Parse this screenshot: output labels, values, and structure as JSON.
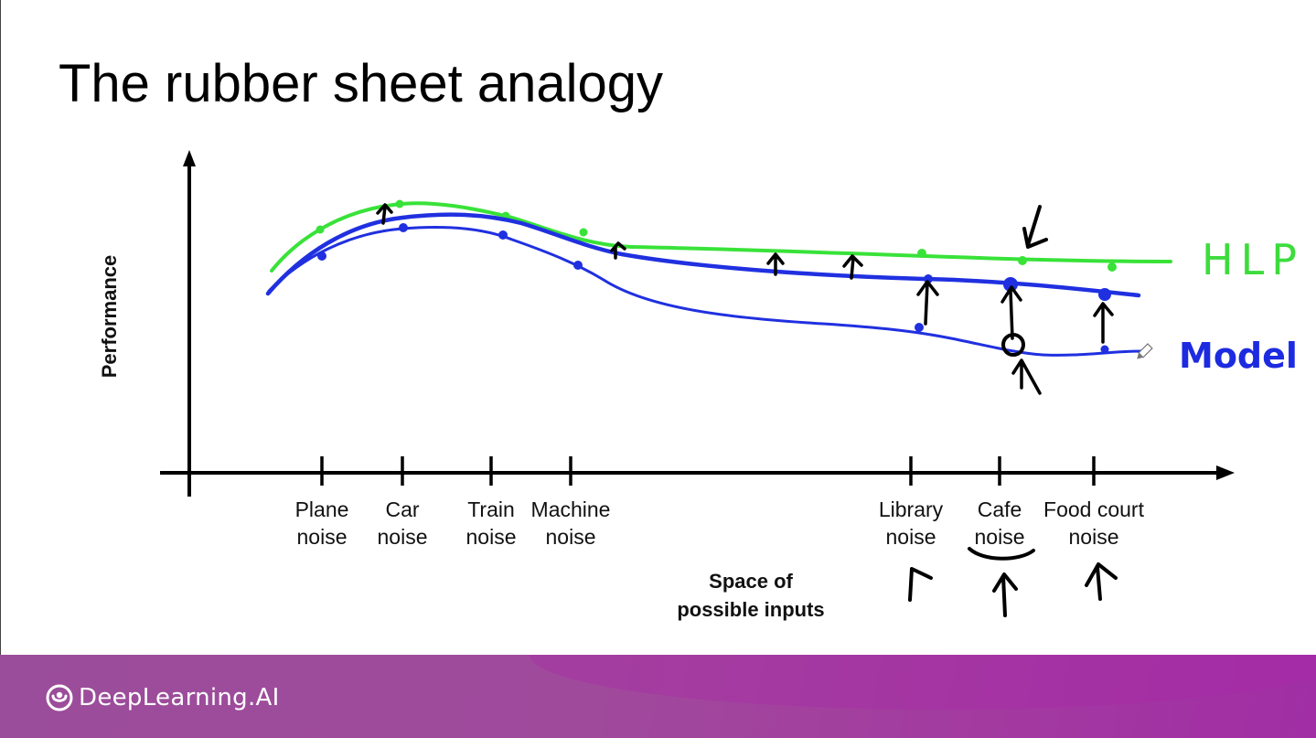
{
  "slide": {
    "title": "The rubber sheet analogy"
  },
  "diagram": {
    "y_axis_label": "Performance",
    "x_axis_label_line1": "Space of",
    "x_axis_label_line2": "possible inputs",
    "categories": [
      {
        "line1": "Plane",
        "line2": "noise"
      },
      {
        "line1": "Car",
        "line2": "noise"
      },
      {
        "line1": "Train",
        "line2": "noise"
      },
      {
        "line1": "Machine",
        "line2": "noise"
      },
      {
        "line1": "Library",
        "line2": "noise"
      },
      {
        "line1": "Cafe",
        "line2": "noise"
      },
      {
        "line1": "Food court",
        "line2": "noise"
      }
    ],
    "annotations": {
      "hlp": "HLP",
      "model": "Model"
    },
    "colors": {
      "hlp": "#33e533",
      "model": "#1f2fdf",
      "ink": "#000000"
    }
  },
  "footer": {
    "brand": "DeepLearning.AI"
  }
}
